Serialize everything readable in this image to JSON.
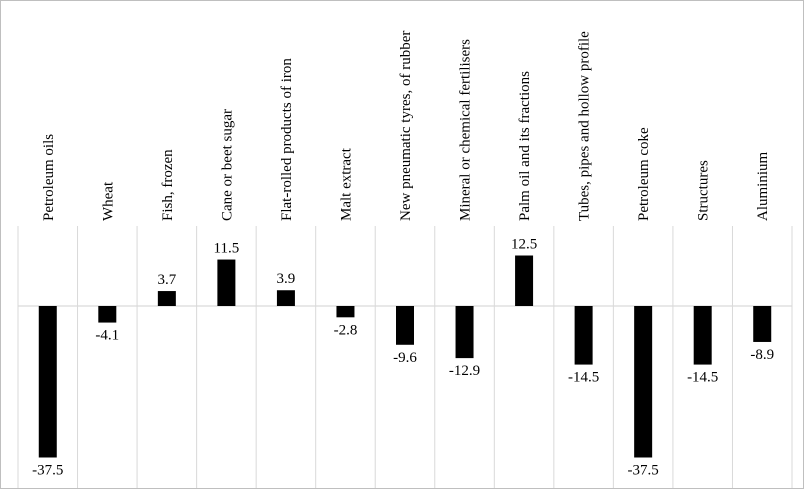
{
  "chart_data": {
    "type": "bar",
    "categories": [
      "Petroleum oils",
      "Wheat",
      "Fish, frozen",
      "Cane or beet sugar",
      "Flat-rolled products of iron",
      "Malt extract",
      "New pneumatic tyres, of rubber",
      "Mineral or chemical fertilisers",
      "Palm oil and its fractions",
      "Tubes, pipes and hollow profile",
      "Petroleum coke",
      "Structures",
      "Aluminium"
    ],
    "values": [
      -37.5,
      -4.1,
      3.7,
      11.5,
      3.9,
      -2.8,
      -9.6,
      -12.9,
      12.5,
      -14.5,
      -37.5,
      -14.5,
      -8.9
    ],
    "value_labels": [
      "-37.5",
      "-4.1",
      "3.7",
      "11.5",
      "3.9",
      "-2.8",
      "-9.6",
      "-12.9",
      "12.5",
      "-14.5",
      "-37.5",
      "-14.5",
      "-8.9"
    ],
    "title": "",
    "xlabel": "",
    "ylabel": "",
    "ylim": [
      -38,
      20
    ],
    "grid": false,
    "legend": "none",
    "colors": {
      "bar": "#000000",
      "separator": "#d9d9d9",
      "axis": "#d9d9d9",
      "border": "#bfbfbf",
      "background": "#ffffff"
    }
  }
}
